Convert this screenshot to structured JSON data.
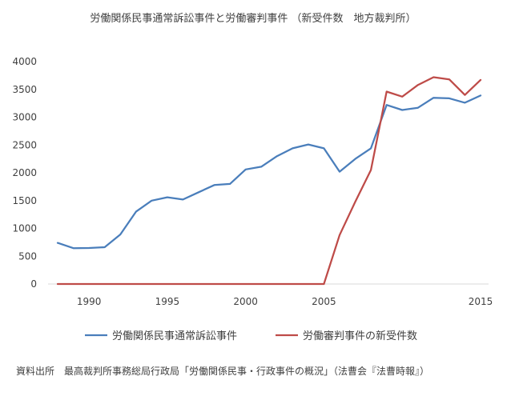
{
  "chart_data": {
    "type": "line",
    "title": "労働関係民事通常訴訟事件と労働審判事件 （新受件数　地方裁判所）",
    "xlabel": "",
    "ylabel": "",
    "x": [
      1988,
      1989,
      1990,
      1991,
      1992,
      1993,
      1994,
      1995,
      1996,
      1997,
      1998,
      1999,
      2000,
      2001,
      2002,
      2003,
      2004,
      2005,
      2006,
      2007,
      2008,
      2009,
      2010,
      2011,
      2012,
      2013,
      2014,
      2015
    ],
    "x_ticks": [
      1990,
      1995,
      2000,
      2005,
      2015
    ],
    "ylim": [
      0,
      4000
    ],
    "y_ticks": [
      0,
      500,
      1000,
      1500,
      2000,
      2500,
      3000,
      3500,
      4000
    ],
    "grid": false,
    "legend_position": "bottom",
    "series": [
      {
        "name": "労働関係民事通常訴訟事件",
        "color": "#4a7ebb",
        "values": [
          740,
          645,
          648,
          662,
          890,
          1300,
          1500,
          1560,
          1520,
          1650,
          1780,
          1800,
          2060,
          2110,
          2300,
          2440,
          2510,
          2440,
          2020,
          2250,
          2440,
          3220,
          3130,
          3170,
          3350,
          3340,
          3260,
          3390
        ]
      },
      {
        "name": "労働審判事件の新受件数",
        "color": "#be4b48",
        "values": [
          0,
          0,
          0,
          0,
          0,
          0,
          0,
          0,
          0,
          0,
          0,
          0,
          0,
          0,
          0,
          0,
          0,
          0,
          880,
          1480,
          2050,
          3460,
          3370,
          3580,
          3720,
          3680,
          3400,
          3670
        ]
      }
    ]
  },
  "footer": {
    "source": "資料出所　最高裁判所事務総局行政局「労働関係民事・行政事件の概況」（法曹会『法曹時報』）"
  },
  "axis_color": "#d9d9d9"
}
